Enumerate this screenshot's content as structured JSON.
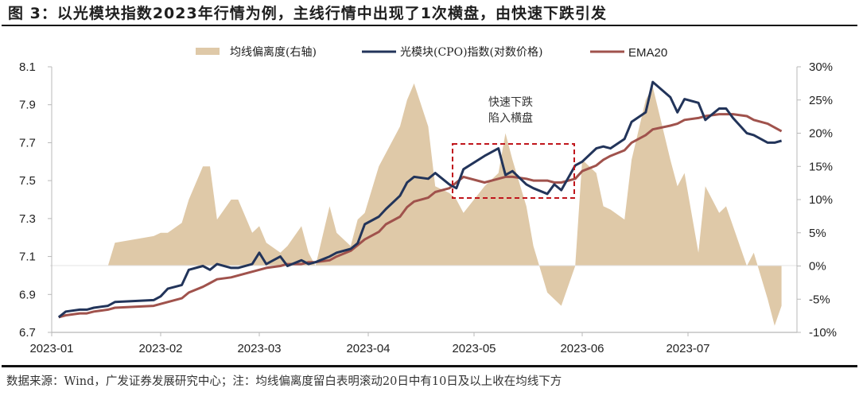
{
  "figure": {
    "title": "图 3：以光模块指数2023年行情为例，主线行情中出现了1次横盘，由快速下跌引发",
    "source_note": "数据来源：Wind，广发证券发展研究中心；注：均线偏离度留白表明滚动20日中有10日及以上收在均线下方"
  },
  "legend": {
    "items": [
      {
        "label": "均线偏离度(右轴)",
        "color": "#dfc9a8",
        "kind": "area"
      },
      {
        "label": "光模块(CPO)指数(对数价格)",
        "color": "#22345a",
        "kind": "line"
      },
      {
        "label": "EMA20",
        "color": "#a0524c",
        "kind": "line"
      }
    ]
  },
  "annotation": {
    "line1": "快速下跌",
    "line2": "陷入横盘",
    "box_color": "#c0161c"
  },
  "colors": {
    "area": "#dfc9a8",
    "index": "#22345a",
    "ema": "#a0524c",
    "axis": "#b8b8b8",
    "zero_line": "#e6e6e6"
  },
  "chart_data": {
    "type": "line",
    "title": "以光模块指数2023年行情为例，主线行情中出现了1次横盘，由快速下跌引发",
    "xlabel": "",
    "ylabel_left": "对数价格",
    "ylabel_right": "均线偏离度",
    "ylim_left": [
      6.7,
      8.1
    ],
    "ylim_right": [
      -10,
      30
    ],
    "yticks_left": [
      "8.1",
      "7.9",
      "7.7",
      "7.5",
      "7.3",
      "7.1",
      "6.9",
      "6.7"
    ],
    "yticks_right": [
      "30%",
      "25%",
      "20%",
      "15%",
      "10%",
      "5%",
      "0%",
      "-5%",
      "-10%"
    ],
    "xticks": [
      "2023-01",
      "2023-02",
      "2023-03",
      "2023-04",
      "2023-05",
      "2023-06",
      "2023-07"
    ],
    "grid": false,
    "legend_position": "top",
    "annotation": {
      "text": "快速下跌 陷入横盘",
      "x_range": [
        "2023-04-25",
        "2023-05-31"
      ],
      "y_range": [
        7.41,
        7.68
      ]
    },
    "x": [
      "01-03",
      "01-05",
      "01-09",
      "01-11",
      "01-13",
      "01-17",
      "01-19",
      "01-30",
      "02-01",
      "02-03",
      "02-07",
      "02-09",
      "02-13",
      "02-15",
      "02-17",
      "02-21",
      "02-23",
      "02-27",
      "03-01",
      "03-03",
      "03-07",
      "03-09",
      "03-13",
      "03-15",
      "03-17",
      "03-21",
      "03-23",
      "03-27",
      "03-29",
      "03-31",
      "04-04",
      "04-06",
      "04-10",
      "04-12",
      "04-14",
      "04-18",
      "04-20",
      "04-24",
      "04-26",
      "04-28",
      "05-04",
      "05-08",
      "05-10",
      "05-12",
      "05-16",
      "05-18",
      "05-22",
      "05-24",
      "05-26",
      "05-30",
      "06-01",
      "06-05",
      "06-07",
      "06-09",
      "06-13",
      "06-15",
      "06-19",
      "06-21",
      "06-26",
      "06-28",
      "06-30",
      "07-04",
      "07-06",
      "07-10",
      "07-12",
      "07-14",
      "07-18",
      "07-20",
      "07-24",
      "07-26",
      "07-28"
    ],
    "series": [
      {
        "name": "光模块(CPO)指数(对数价格)",
        "axis": "left",
        "values": [
          6.78,
          6.81,
          6.82,
          6.82,
          6.83,
          6.84,
          6.86,
          6.87,
          6.89,
          6.93,
          6.95,
          7.03,
          7.05,
          7.03,
          7.06,
          7.04,
          7.04,
          7.06,
          7.12,
          7.06,
          7.1,
          7.05,
          7.08,
          7.06,
          7.07,
          7.1,
          7.12,
          7.14,
          7.17,
          7.27,
          7.31,
          7.35,
          7.42,
          7.49,
          7.52,
          7.51,
          7.54,
          7.48,
          7.46,
          7.56,
          7.63,
          7.67,
          7.53,
          7.55,
          7.48,
          7.46,
          7.43,
          7.48,
          7.45,
          7.58,
          7.6,
          7.67,
          7.68,
          7.67,
          7.72,
          7.81,
          7.86,
          8.02,
          7.94,
          7.86,
          7.93,
          7.91,
          7.82,
          7.88,
          7.88,
          7.83,
          7.75,
          7.74,
          7.7,
          7.7,
          7.71
        ]
      },
      {
        "name": "EMA20",
        "axis": "left",
        "values": [
          6.78,
          6.79,
          6.8,
          6.8,
          6.81,
          6.82,
          6.83,
          6.84,
          6.85,
          6.86,
          6.88,
          6.91,
          6.94,
          6.96,
          6.98,
          6.99,
          7.0,
          7.02,
          7.03,
          7.04,
          7.05,
          7.06,
          7.06,
          7.07,
          7.07,
          7.08,
          7.1,
          7.13,
          7.16,
          7.19,
          7.23,
          7.27,
          7.31,
          7.36,
          7.39,
          7.41,
          7.44,
          7.46,
          7.49,
          7.52,
          7.49,
          7.51,
          7.52,
          7.52,
          7.51,
          7.5,
          7.5,
          7.49,
          7.49,
          7.51,
          7.55,
          7.58,
          7.61,
          7.63,
          7.66,
          7.7,
          7.74,
          7.77,
          7.79,
          7.8,
          7.82,
          7.83,
          7.84,
          7.85,
          7.85,
          7.85,
          7.84,
          7.82,
          7.8,
          7.78,
          7.76
        ]
      },
      {
        "name": "均线偏离度(右轴)",
        "axis": "right",
        "type": "area",
        "values": [
          0,
          0,
          0,
          0,
          0,
          0,
          3.5,
          4.5,
          5,
          5,
          6.5,
          10,
          15,
          15,
          7,
          10,
          10,
          5,
          6,
          3.5,
          2,
          3,
          6,
          2,
          0,
          9,
          5,
          3,
          7,
          8,
          15,
          17,
          21,
          25,
          27.5,
          21,
          12,
          11,
          10,
          8,
          12,
          14,
          20,
          16,
          9,
          3,
          -4,
          -5,
          -6,
          0,
          16,
          14,
          9,
          8.5,
          7,
          16,
          25,
          27,
          16,
          12,
          14,
          2,
          12,
          8,
          9,
          6,
          0,
          2,
          -5,
          -9,
          -6
        ]
      }
    ]
  }
}
